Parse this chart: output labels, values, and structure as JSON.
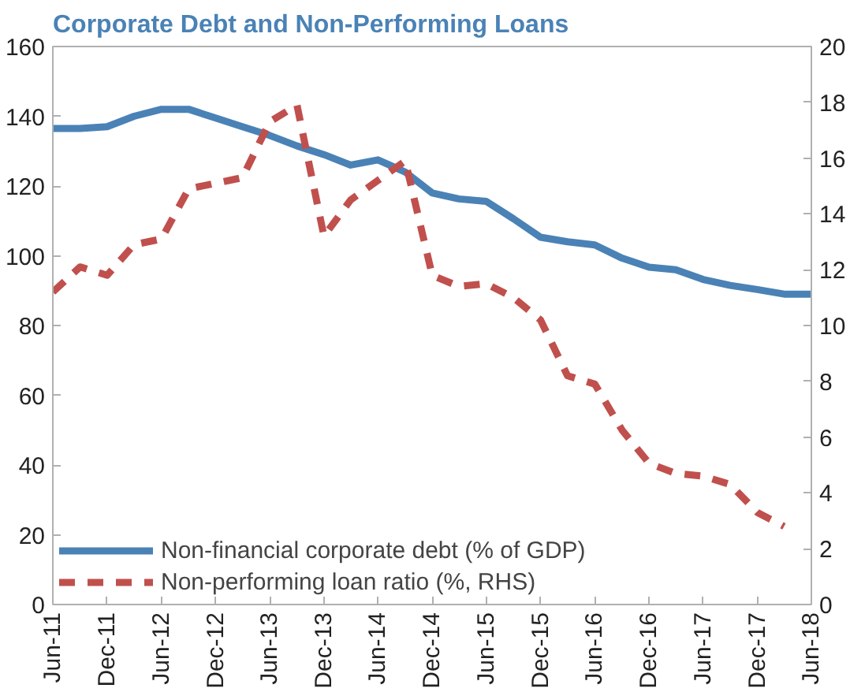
{
  "chart_data": {
    "type": "line",
    "title": "Corporate Debt and Non-Performing Loans",
    "x": [
      "2011-06",
      "2011-09",
      "2011-12",
      "2012-03",
      "2012-06",
      "2012-09",
      "2012-12",
      "2013-03",
      "2013-06",
      "2013-09",
      "2013-12",
      "2014-03",
      "2014-06",
      "2014-09",
      "2014-12",
      "2015-03",
      "2015-06",
      "2015-09",
      "2015-12",
      "2016-03",
      "2016-06",
      "2016-09",
      "2016-12",
      "2017-03",
      "2017-06",
      "2017-09",
      "2017-12",
      "2018-03",
      "2018-06"
    ],
    "series": [
      {
        "name": "Non-financial corporate debt (% of GDP)",
        "color": "#4a82b6",
        "line_style": "solid",
        "values": [
          136.5,
          136.5,
          137,
          140,
          142,
          142,
          139.5,
          137,
          134.5,
          131.5,
          129,
          126,
          127.5,
          124,
          118,
          116.3,
          115.6,
          110.6,
          105.3,
          104,
          103.1,
          99.3,
          96.7,
          96,
          93.2,
          91.5,
          90.3,
          89,
          89
        ]
      },
      {
        "name": "Non-performing loan ratio (%, RHS)",
        "color": "#c0504d",
        "line_style": "dashed",
        "axis": "y2",
        "values": [
          11.2,
          12.1,
          11.8,
          12.9,
          13.1,
          14.9,
          15.1,
          15.3,
          17.3,
          17.9,
          13.2,
          14.5,
          15.2,
          15.9,
          11.8,
          11.4,
          11.5,
          11.0,
          10.2,
          8.2,
          7.9,
          6.25,
          5.06,
          4.7,
          4.6,
          4.3,
          3.3,
          2.8,
          null
        ]
      }
    ],
    "ylim": [
      0,
      160
    ],
    "yticks": [
      0,
      20,
      40,
      60,
      80,
      100,
      120,
      140,
      160
    ],
    "y2lim": [
      0,
      20
    ],
    "y2ticks": [
      0,
      2,
      4,
      6,
      8,
      10,
      12,
      14,
      16,
      18,
      20
    ],
    "xlim": [
      "2011-06",
      "2018-06"
    ],
    "xticks": [
      {
        "value": "2011-06",
        "label": "Jun-11"
      },
      {
        "value": "2011-12",
        "label": "Dec-11"
      },
      {
        "value": "2012-06",
        "label": "Jun-12"
      },
      {
        "value": "2012-12",
        "label": "Dec-12"
      },
      {
        "value": "2013-06",
        "label": "Jun-13"
      },
      {
        "value": "2013-12",
        "label": "Dec-13"
      },
      {
        "value": "2014-06",
        "label": "Jun-14"
      },
      {
        "value": "2014-12",
        "label": "Dec-14"
      },
      {
        "value": "2015-06",
        "label": "Jun-15"
      },
      {
        "value": "2015-12",
        "label": "Dec-15"
      },
      {
        "value": "2016-06",
        "label": "Jun-16"
      },
      {
        "value": "2016-12",
        "label": "Dec-16"
      },
      {
        "value": "2017-06",
        "label": "Jun-17"
      },
      {
        "value": "2017-12",
        "label": "Dec-17"
      },
      {
        "value": "2018-06",
        "label": "Jun-18"
      }
    ],
    "grid": false,
    "legend": "bottom left"
  }
}
